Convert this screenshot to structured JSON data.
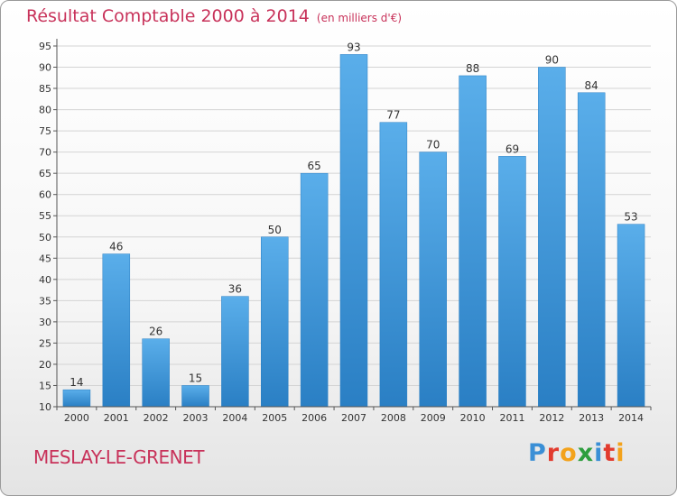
{
  "header": {
    "title": "Résultat Comptable 2000 à 2014",
    "unit": "(en milliers d'€)"
  },
  "footer": {
    "city": "MESLAY-LE-GRENET",
    "logo": [
      "P",
      "r",
      "o",
      "x",
      "i",
      "t",
      "i"
    ],
    "logo_colors": [
      "#3a8fd6",
      "#e23b2e",
      "#f3a21b",
      "#2e9e3e",
      "#3a8fd6",
      "#e23b2e",
      "#f3a21b"
    ]
  },
  "chart_data": {
    "type": "bar",
    "title": "Résultat Comptable 2000 à 2014",
    "categories": [
      "2000",
      "2001",
      "2002",
      "2003",
      "2004",
      "2005",
      "2006",
      "2007",
      "2008",
      "2009",
      "2010",
      "2011",
      "2012",
      "2013",
      "2014"
    ],
    "values": [
      14,
      46,
      26,
      15,
      36,
      50,
      65,
      93,
      77,
      70,
      88,
      69,
      90,
      84,
      53
    ],
    "value_labels": [
      "14",
      "46",
      "26",
      "15",
      "36",
      "50",
      "65",
      "93",
      "77",
      "70",
      "88",
      "69",
      "90",
      "84",
      "53"
    ],
    "ylim": [
      10,
      95
    ],
    "yticks": [
      "10",
      "15",
      "20",
      "25",
      "30",
      "35",
      "40",
      "45",
      "50",
      "55",
      "60",
      "65",
      "70",
      "75",
      "80",
      "85",
      "90",
      "95"
    ],
    "grid": true,
    "bar_color": "#3a93d8"
  }
}
